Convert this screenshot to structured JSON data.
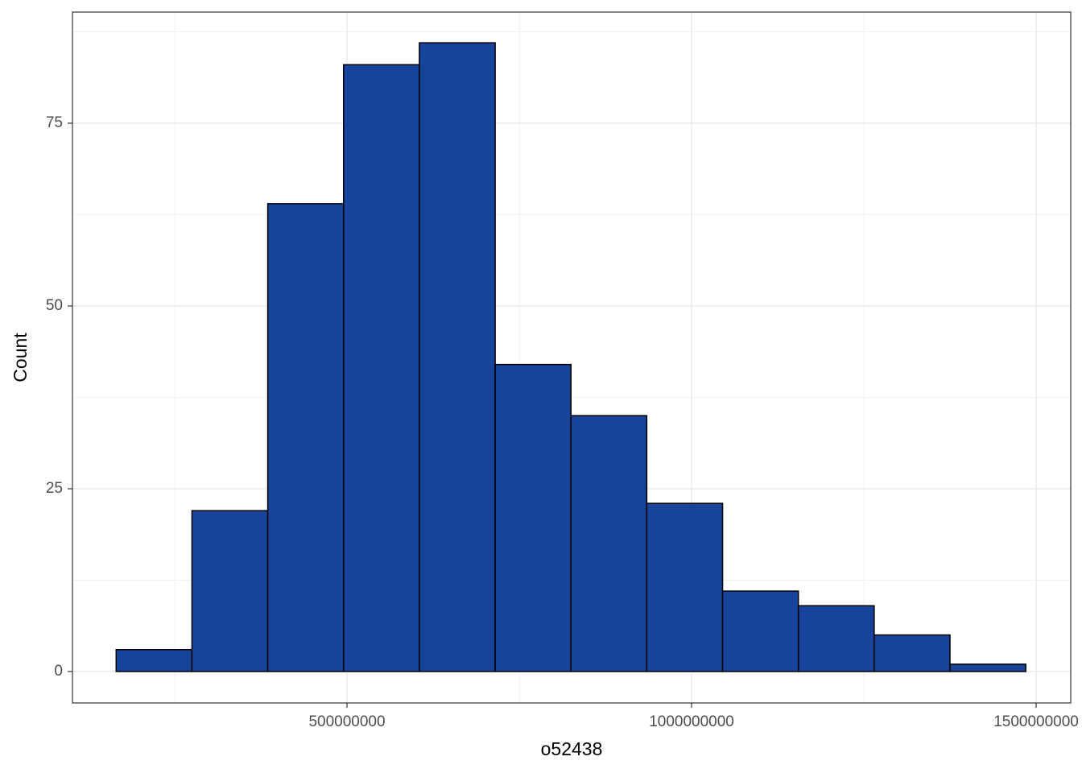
{
  "chart_data": {
    "type": "histogram",
    "x_label": "o52438",
    "y_label": "Count",
    "bins": [
      165000000,
      275000000,
      385000000,
      495000000,
      605000000,
      715000000,
      825000000,
      935000000,
      1045000000,
      1155000000,
      1265000000,
      1375000000,
      1485000000
    ],
    "values": [
      3,
      22,
      64,
      83,
      86,
      42,
      35,
      23,
      11,
      9,
      5,
      1
    ],
    "color": "#17439b",
    "xlim": [
      101600000,
      1550200000
    ],
    "xticks": [
      500000000,
      1000000000,
      1500000000
    ],
    "ylim": [
      -4.3,
      90.2
    ],
    "yticks": [
      0,
      25,
      50,
      75
    ],
    "grid": true,
    "minor_grid": true
  }
}
